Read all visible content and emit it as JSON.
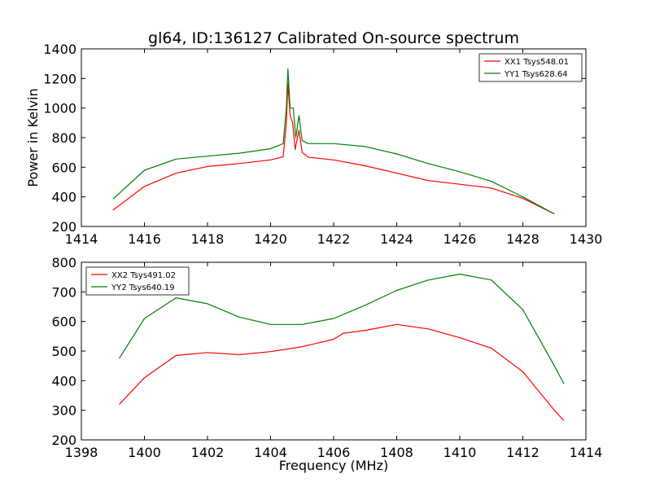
{
  "figure": {
    "title": "gl64, ID:136127 Calibrated On-source spectrum",
    "ylabel": "Power in Kelvin",
    "xlabel": "Frequency (MHz)"
  },
  "chart_data": [
    {
      "type": "line",
      "xlim": [
        1414,
        1430
      ],
      "ylim": [
        200,
        1400
      ],
      "xticks": [
        1414,
        1416,
        1418,
        1420,
        1422,
        1424,
        1426,
        1428,
        1430
      ],
      "yticks": [
        200,
        400,
        600,
        800,
        1000,
        1200,
        1400
      ],
      "ylabel": "Power in Kelvin",
      "legend_position": "top-right",
      "series": [
        {
          "name": "XX1 Tsys548.01",
          "color": "#ff0000",
          "points": [
            [
              1415,
              310
            ],
            [
              1416,
              470
            ],
            [
              1417,
              560
            ],
            [
              1418,
              605
            ],
            [
              1419,
              625
            ],
            [
              1420,
              650
            ],
            [
              1420.4,
              670
            ],
            [
              1420.5,
              900
            ],
            [
              1420.55,
              1170
            ],
            [
              1420.62,
              950
            ],
            [
              1420.7,
              900
            ],
            [
              1420.78,
              720
            ],
            [
              1420.9,
              850
            ],
            [
              1421.0,
              700
            ],
            [
              1421.2,
              668
            ],
            [
              1422,
              650
            ],
            [
              1423,
              610
            ],
            [
              1424,
              560
            ],
            [
              1425,
              510
            ],
            [
              1426,
              485
            ],
            [
              1427,
              460
            ],
            [
              1428,
              390
            ],
            [
              1429,
              285
            ]
          ]
        },
        {
          "name": "YY1 Tsys628.64",
          "color": "#008000",
          "points": [
            [
              1415,
              385
            ],
            [
              1416,
              580
            ],
            [
              1417,
              655
            ],
            [
              1418,
              675
            ],
            [
              1419,
              695
            ],
            [
              1420,
              725
            ],
            [
              1420.4,
              760
            ],
            [
              1420.5,
              1000
            ],
            [
              1420.55,
              1265
            ],
            [
              1420.62,
              1000
            ],
            [
              1420.72,
              1000
            ],
            [
              1420.8,
              800
            ],
            [
              1420.9,
              950
            ],
            [
              1421.0,
              780
            ],
            [
              1421.2,
              760
            ],
            [
              1422,
              760
            ],
            [
              1423,
              740
            ],
            [
              1424,
              690
            ],
            [
              1425,
              625
            ],
            [
              1426,
              570
            ],
            [
              1427,
              505
            ],
            [
              1428,
              400
            ],
            [
              1429,
              285
            ]
          ]
        }
      ]
    },
    {
      "type": "line",
      "xlim": [
        1398,
        1414
      ],
      "ylim": [
        200,
        800
      ],
      "xticks": [
        1398,
        1400,
        1402,
        1404,
        1406,
        1408,
        1410,
        1412,
        1414
      ],
      "yticks": [
        200,
        300,
        400,
        500,
        600,
        700,
        800
      ],
      "xlabel": "Frequency (MHz)",
      "legend_position": "top-left",
      "series": [
        {
          "name": "XX2 Tsys491.02",
          "color": "#ff0000",
          "points": [
            [
              1399.2,
              320
            ],
            [
              1400,
              410
            ],
            [
              1401,
              485
            ],
            [
              1402,
              495
            ],
            [
              1403,
              488
            ],
            [
              1404,
              498
            ],
            [
              1405,
              515
            ],
            [
              1406,
              540
            ],
            [
              1406.3,
              560
            ],
            [
              1407,
              570
            ],
            [
              1408,
              590
            ],
            [
              1409,
              575
            ],
            [
              1410,
              545
            ],
            [
              1411,
              510
            ],
            [
              1412,
              430
            ],
            [
              1413,
              300
            ],
            [
              1413.3,
              265
            ]
          ]
        },
        {
          "name": "YY2 Tsys640.19",
          "color": "#008000",
          "points": [
            [
              1399.2,
              475
            ],
            [
              1400,
              610
            ],
            [
              1401,
              680
            ],
            [
              1402,
              660
            ],
            [
              1403,
              615
            ],
            [
              1404,
              590
            ],
            [
              1405,
              590
            ],
            [
              1406,
              610
            ],
            [
              1407,
              655
            ],
            [
              1408,
              705
            ],
            [
              1409,
              740
            ],
            [
              1410,
              760
            ],
            [
              1411,
              740
            ],
            [
              1412,
              640
            ],
            [
              1413,
              450
            ],
            [
              1413.3,
              390
            ]
          ]
        }
      ]
    }
  ]
}
